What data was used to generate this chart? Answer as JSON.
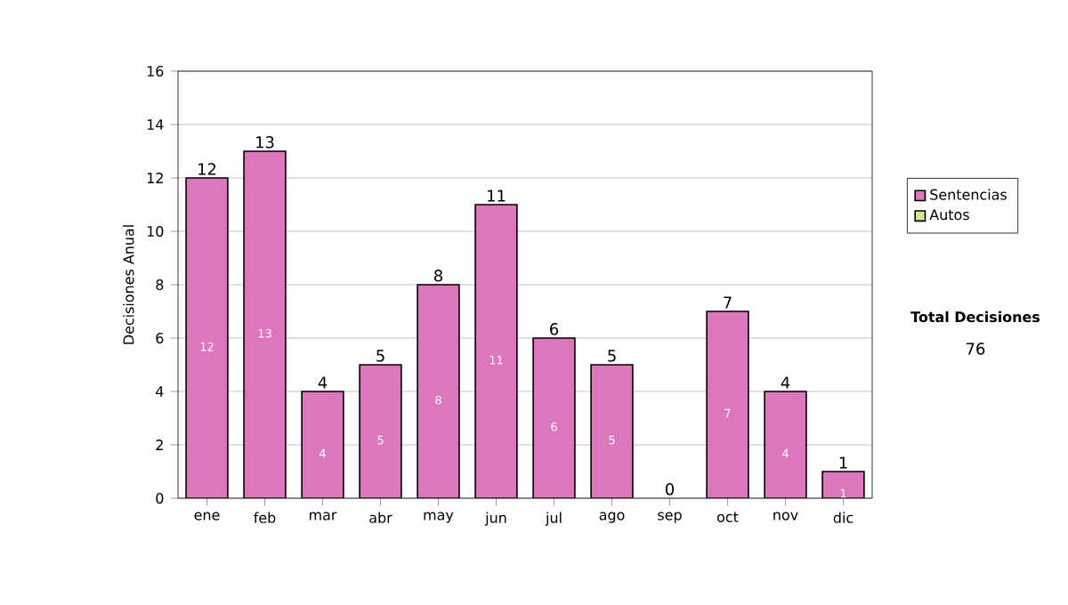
{
  "chart_data": {
    "type": "bar",
    "stacked": true,
    "ylabel": "Decisiones Anual",
    "categories": [
      "ene",
      "feb",
      "mar",
      "abr",
      "may",
      "jun",
      "jul",
      "ago",
      "sep",
      "oct",
      "nov",
      "dic"
    ],
    "series": [
      {
        "name": "Sentencias",
        "color": "#dd77bb",
        "values": [
          12,
          13,
          4,
          5,
          8,
          11,
          6,
          5,
          0,
          7,
          4,
          1
        ],
        "value_labels": [
          "12",
          "13",
          "4",
          "5",
          "8",
          "11",
          "6",
          "5",
          null,
          "7",
          "4",
          "1"
        ]
      },
      {
        "name": "Autos",
        "color": "#cce699",
        "values": [
          0,
          0,
          0,
          0,
          0,
          0,
          0,
          0,
          0,
          0,
          0,
          0
        ]
      }
    ],
    "totals": [
      "12",
      "13",
      "4",
      "5",
      "8",
      "11",
      "6",
      "5",
      "0",
      "7",
      "4",
      "1"
    ],
    "ylim": [
      0,
      16
    ],
    "yticks": [
      0,
      2,
      4,
      6,
      8,
      10,
      12,
      14,
      16
    ],
    "grid": "y",
    "legend": "right",
    "annotations": [
      "Total Decisiones",
      "76"
    ]
  }
}
